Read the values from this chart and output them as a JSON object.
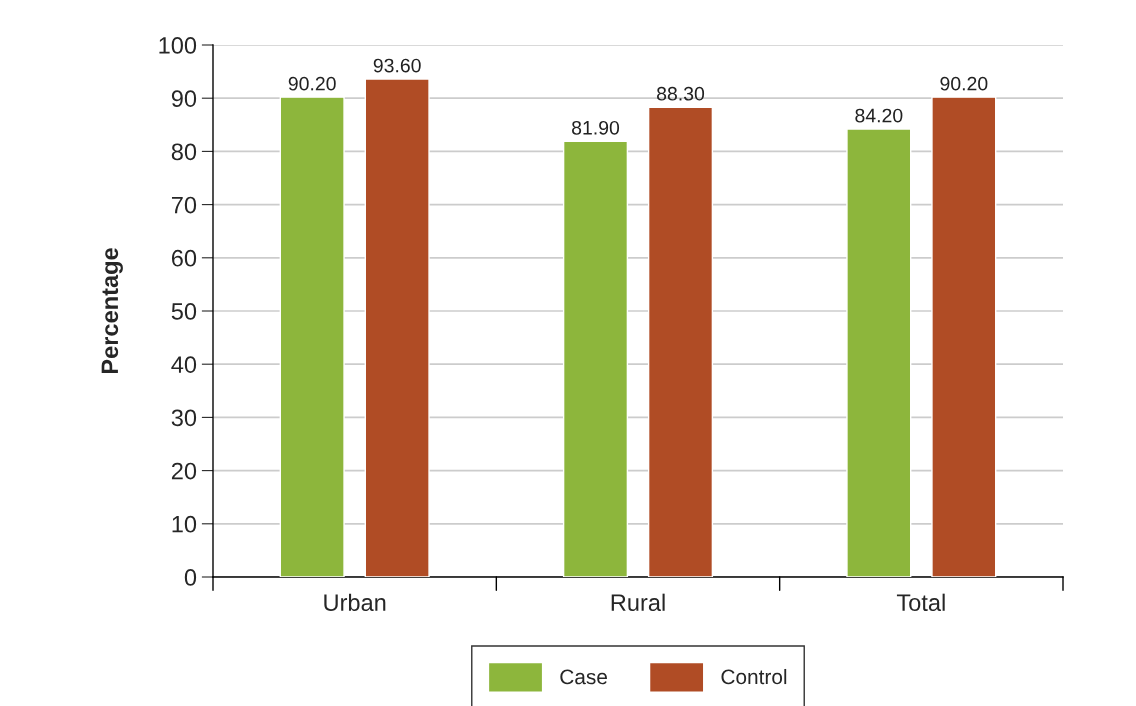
{
  "chart_data": {
    "type": "bar",
    "ylabel": "Percentage",
    "categories": [
      "Urban",
      "Rural",
      "Total"
    ],
    "series": [
      {
        "name": "Case",
        "color": "#8db63c",
        "values": [
          90.2,
          81.9,
          84.2
        ],
        "value_labels": [
          "90.20",
          "81.90",
          "84.20"
        ]
      },
      {
        "name": "Control",
        "color": "#b04c25",
        "values": [
          93.6,
          88.3,
          90.2
        ],
        "value_labels": [
          "93.60",
          "88.30",
          "90.20"
        ]
      }
    ],
    "ylim": [
      0,
      100
    ],
    "yticks": [
      0,
      10,
      20,
      30,
      40,
      50,
      60,
      70,
      80,
      90,
      100
    ],
    "grid": "y",
    "legend": "bottom"
  }
}
